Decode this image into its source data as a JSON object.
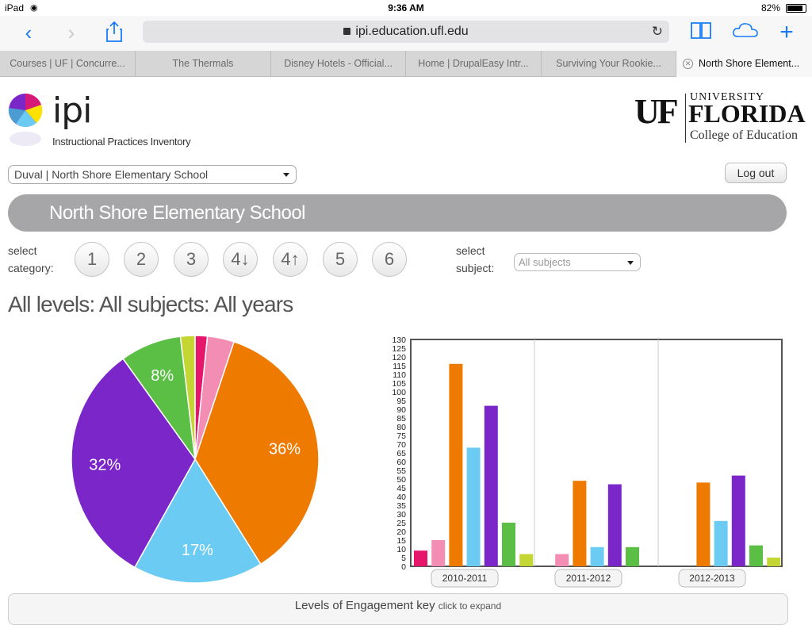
{
  "status": {
    "carrier": "iPad",
    "time": "9:36 AM",
    "battery": "82%"
  },
  "browser": {
    "url": "ipi.education.ufl.edu",
    "tabs": [
      "Courses | UF | Concurre...",
      "The Thermals",
      "Disney Hotels - Official...",
      "Home | DrupalEasy Intr...",
      "Surviving Your Rookie...",
      "North Shore Element..."
    ]
  },
  "header": {
    "ipi_word": "ipi",
    "ipi_subtitle": "Instructional Practices Inventory",
    "uf_mark": "UF",
    "uf_university": "UNIVERSITY",
    "uf_florida": "FLORIDA",
    "uf_college": "College of Education"
  },
  "controls": {
    "school_select": "Duval | North Shore Elementary School",
    "logout": "Log out",
    "banner": "North Shore Elementary School",
    "select_category_1": "select",
    "select_category_2": "category:",
    "categories": [
      "1",
      "2",
      "3",
      "4↓",
      "4↑",
      "5",
      "6"
    ],
    "select_subject_1": "select",
    "select_subject_2": "subject:",
    "subject_value": "All subjects"
  },
  "heading": "All levels: All subjects: All years",
  "colors": {
    "cat1": "#e6166a",
    "cat2": "#f38db3",
    "cat3": "#ef7a00",
    "cat4": "#6ccbf2",
    "cat5": "#7b26c8",
    "cat6": "#5cbf45",
    "cat7": "#c4d634"
  },
  "chart_data": [
    {
      "type": "pie",
      "slices": [
        {
          "value": 1.6,
          "color": "#e6166a"
        },
        {
          "value": 3.5,
          "color": "#f38db3"
        },
        {
          "value": 36,
          "label": "36%",
          "color": "#ef7a00"
        },
        {
          "value": 17,
          "label": "17%",
          "color": "#6ccbf2"
        },
        {
          "value": 32,
          "label": "32%",
          "color": "#7b26c8"
        },
        {
          "value": 8,
          "label": "8%",
          "color": "#5cbf45"
        },
        {
          "value": 1.9,
          "color": "#c4d634"
        }
      ]
    },
    {
      "type": "bar",
      "categories": [
        "2010-2011",
        "2011-2012",
        "2012-2013"
      ],
      "series_colors": [
        "#e6166a",
        "#f38db3",
        "#ef7a00",
        "#6ccbf2",
        "#7b26c8",
        "#5cbf45",
        "#c4d634"
      ],
      "values": [
        [
          9,
          15,
          116,
          68,
          92,
          25,
          7
        ],
        [
          0,
          7,
          49,
          11,
          47,
          11,
          0
        ],
        [
          0,
          0,
          48,
          26,
          52,
          12,
          5
        ]
      ],
      "ylim": [
        0,
        130
      ],
      "yticks": [
        0,
        5,
        10,
        15,
        20,
        25,
        30,
        35,
        40,
        45,
        50,
        55,
        60,
        65,
        70,
        75,
        80,
        85,
        90,
        95,
        100,
        105,
        110,
        115,
        120,
        125,
        130
      ]
    }
  ],
  "key": {
    "label": "Levels of Engagement key",
    "hint": "click to expand"
  }
}
